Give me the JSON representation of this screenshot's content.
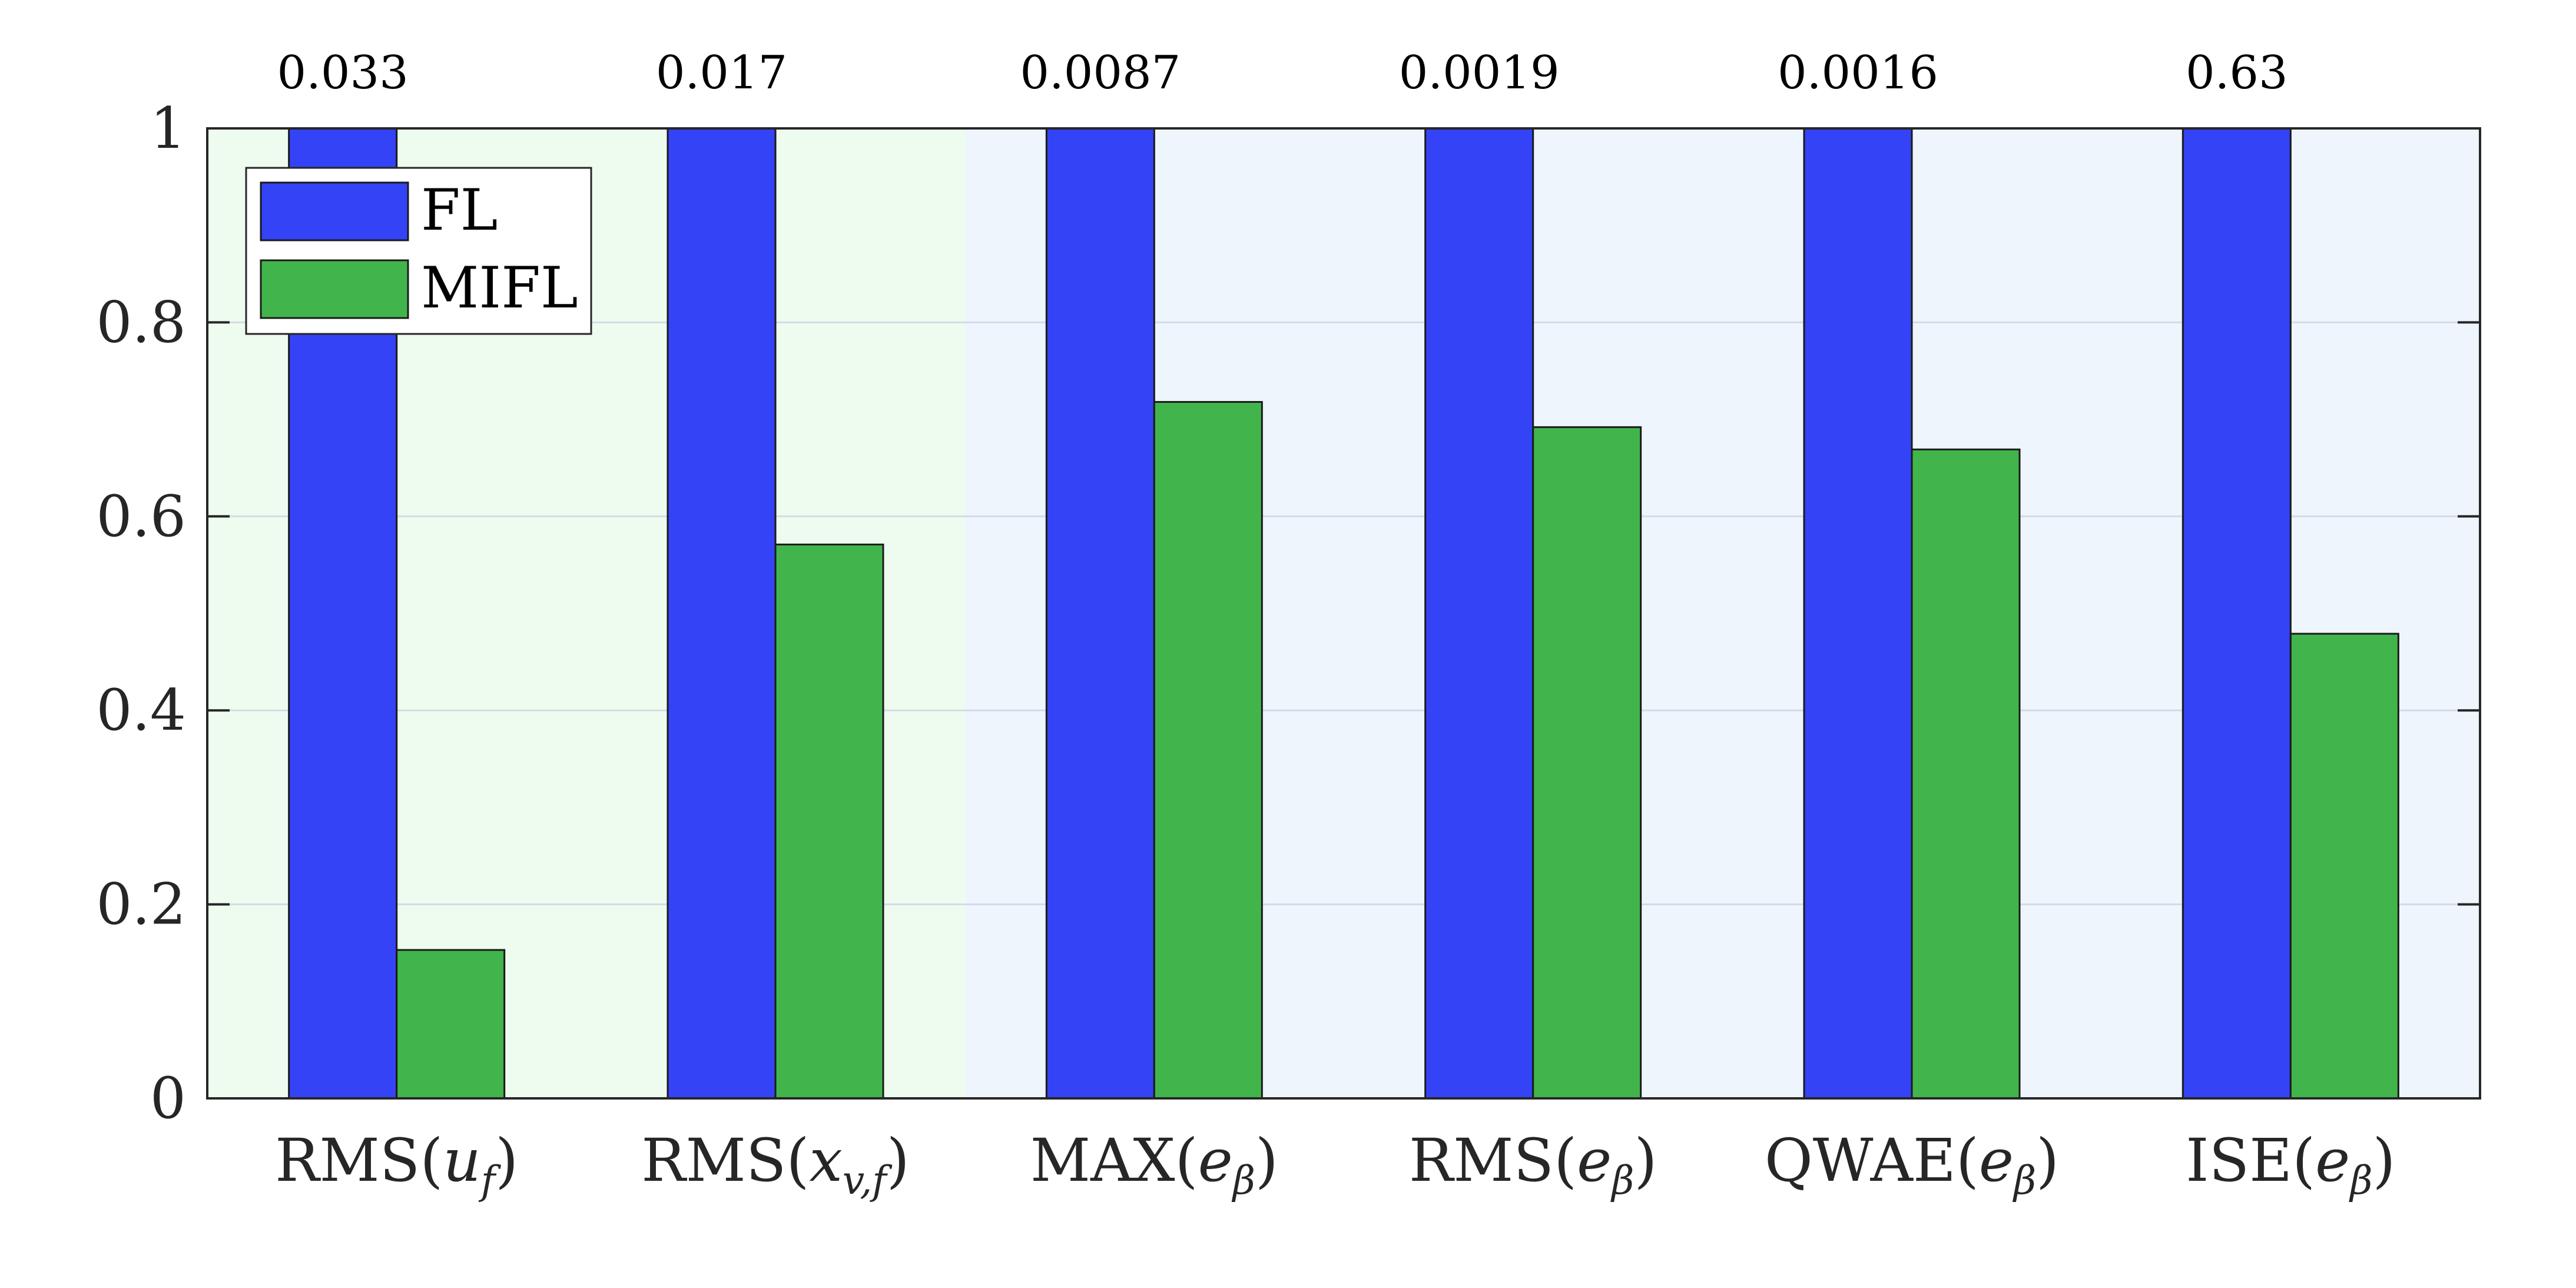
{
  "chart_data": {
    "type": "bar",
    "title": "",
    "xlabel": "",
    "ylabel": "",
    "ylim": [
      0,
      1
    ],
    "yticks": [
      "0",
      "0.2",
      "0.4",
      "0.6",
      "0.8",
      "1"
    ],
    "ytick_values": [
      0,
      0.2,
      0.4,
      0.6,
      0.8,
      1
    ],
    "grid": "horizontal",
    "legend_position": "top-left",
    "categories": [
      {
        "base": "RMS(",
        "var": "u",
        "sub": "f",
        "end": ")"
      },
      {
        "base": "RMS(",
        "var": "x",
        "sub": "v,f",
        "end": ")"
      },
      {
        "base": "MAX(",
        "var": "e",
        "sub": "β",
        "end": ")"
      },
      {
        "base": "RMS(",
        "var": "e",
        "sub": "β",
        "end": ")"
      },
      {
        "base": "QWAE(",
        "var": "e",
        "sub": "β",
        "end": ")"
      },
      {
        "base": "ISE(",
        "var": "e",
        "sub": "β",
        "end": ")"
      }
    ],
    "top_labels": [
      "0.033",
      "0.017",
      "0.0087",
      "0.0019",
      "0.0016",
      "0.63"
    ],
    "background_groups": [
      {
        "from": 0,
        "to": 1,
        "color": "#eefbef"
      },
      {
        "from": 2,
        "to": 5,
        "color": "#eef5fd"
      }
    ],
    "series": [
      {
        "name": "FL",
        "color": "#3343f5",
        "values": [
          1,
          1,
          1,
          1,
          1,
          1
        ]
      },
      {
        "name": "MIFL",
        "color": "#41b54c",
        "values": [
          0.153,
          0.571,
          0.718,
          0.692,
          0.669,
          0.479
        ]
      }
    ],
    "colors": {
      "grid": "#d3dbe6",
      "axis": "#262626",
      "bar_edge": "#1a1a1a"
    }
  }
}
